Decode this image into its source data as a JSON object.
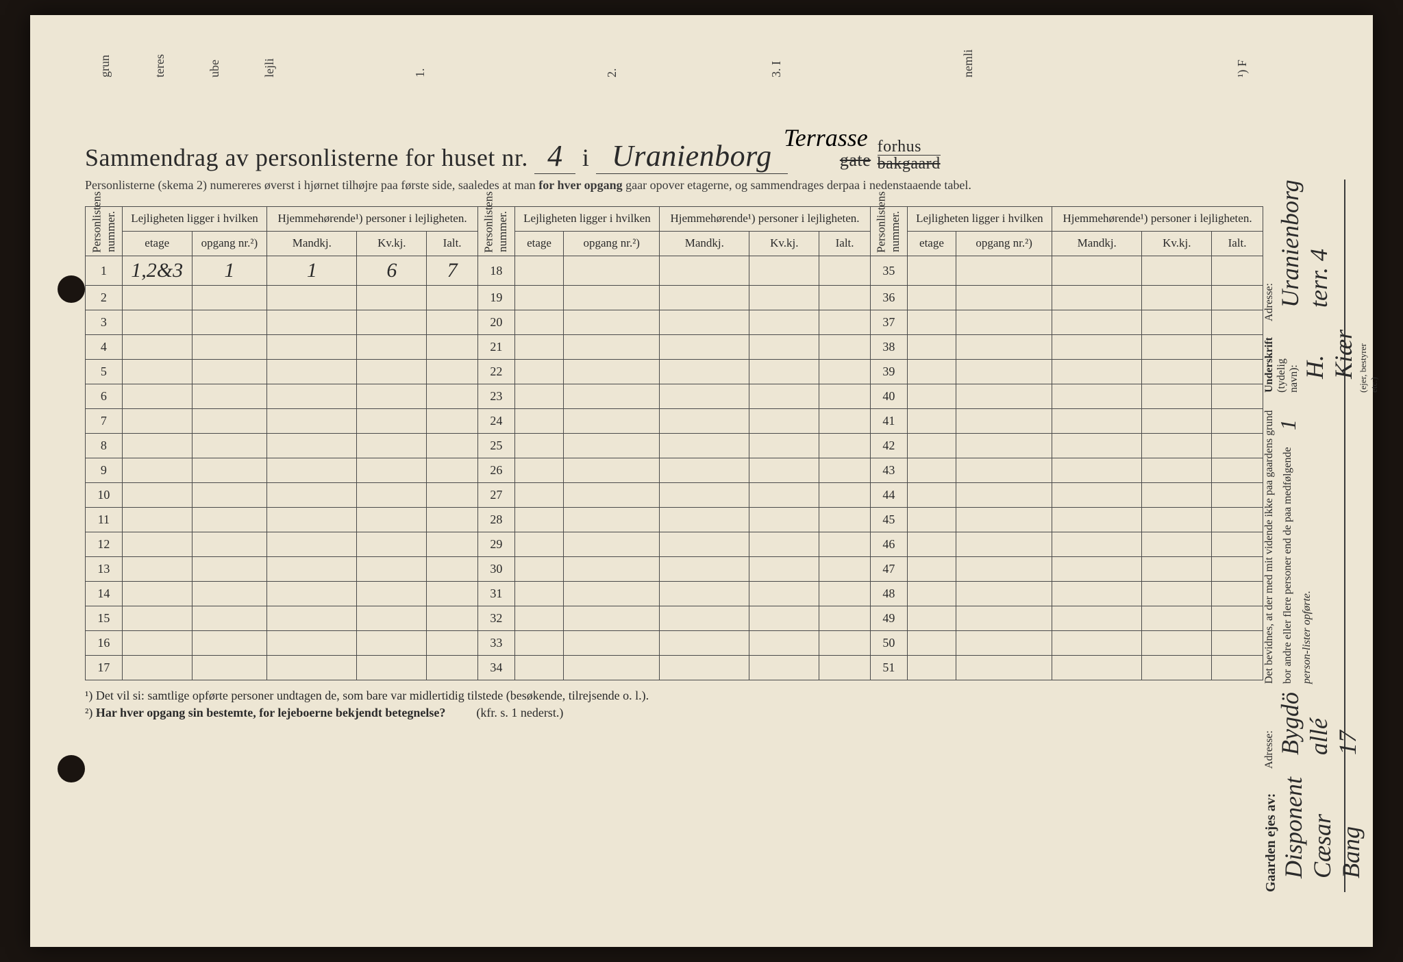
{
  "title": {
    "prefix": "Sammendrag av personlisterne for huset nr.",
    "house_nr": "4",
    "mid": "i",
    "street_hw": "Uranienborg",
    "terrasse_hw": "Terrasse",
    "gate_strike": "gate",
    "forhus": "forhus",
    "bakgaard_strike": "bakgaard"
  },
  "subtitle": "Personlisterne (skema 2) numereres øverst i hjørnet tilhøjre paa første side, saaledes at man for hver opgang gaar opover etagerne, og sammendrages derpaa i nedenstaaende tabel.",
  "subtitle_bold": "for hver opgang",
  "headers": {
    "personlistens": "Personlistens nummer.",
    "lejligheten": "Lejligheten ligger i hvilken",
    "hjemme": "Hjemmehørende¹) personer i lejligheten.",
    "etage": "etage",
    "opgang": "opgang nr.²)",
    "mandkj": "Mandkj.",
    "kvkj": "Kv.kj.",
    "ialt": "Ialt."
  },
  "data_row": {
    "num": "1",
    "etage": "1,2&3",
    "opgang": "1",
    "mandkj": "1",
    "kvkj": "6",
    "ialt": "7"
  },
  "row_ranges": [
    [
      1,
      17
    ],
    [
      18,
      34
    ],
    [
      35,
      51
    ]
  ],
  "footnotes": {
    "f1": "¹) Det vil si: samtlige opførte personer undtagen de, som bare var midlertidig tilstede (besøkende, tilrejsende o. l.).",
    "f2_label": "²)",
    "f2_text": "Har hver opgang sin bestemte, for lejeboerne bekjendt betegnelse?",
    "f2_ref": "(kfr. s. 1 nederst.)"
  },
  "right": {
    "gaarden": "Gaarden ejes av:",
    "owner_hw": "Disponent Cæsar Bang",
    "adresse1_label": "Adresse:",
    "adresse1_hw": "Bygdö allé 17",
    "bevidnes": "Det bevidnes, at der med mit vidende ikke paa gaardens grund bor andre eller flere personer end de paa medfølgende",
    "lister_count_hw": "1",
    "lister_suffix": "person-lister opførte.",
    "underskrift_label": "Underskrift",
    "underskrift_note": "(tydelig navn):",
    "underskrift_hw": "H. Kiær",
    "besvarer": "(ejer, bestyrer etc.)",
    "adresse2_label": "Adresse:",
    "adresse2_hw": "Uranienborg terr. 4"
  },
  "top_fragments": [
    "grun",
    "teres",
    "ube",
    "lejli",
    "1.",
    "2.",
    "3. I",
    "nemli",
    "¹) F"
  ],
  "colors": {
    "paper": "#ede6d4",
    "ink": "#2a2a2a",
    "border": "#4a4a4a",
    "bg": "#1a1410"
  }
}
